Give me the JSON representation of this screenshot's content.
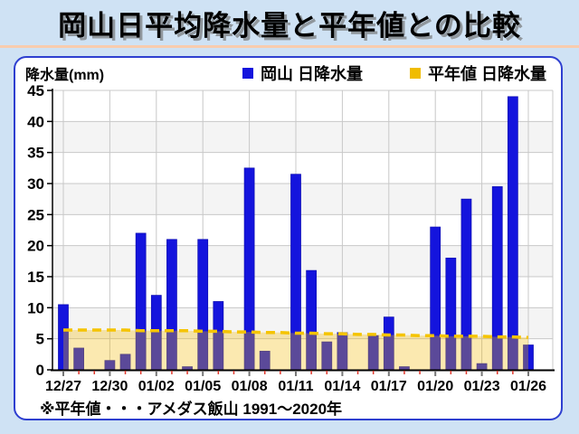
{
  "page": {
    "title": "岡山日平均降水量と平年値との比較",
    "footnote": "※平年値・・・アメダス飯山 1991～2020年"
  },
  "header": {
    "unit_label": "降水量(mm)",
    "legend": [
      {
        "label": "岡山 日降水量",
        "color": "#1414dd"
      },
      {
        "label": "平年値 日降水量",
        "color": "#f0bc00"
      }
    ]
  },
  "colors": {
    "page_background": "#cfe2f4",
    "title_divider": "#f8ccae",
    "panel_border": "#2e3fd0",
    "bar_blue": "#1414dd",
    "bar_blue_stroke": "#0f0fb4",
    "normal_area_fill": "rgba(243,187,9,0.32)",
    "normal_dash_line": "#f5c402",
    "gridline": "#c8c8c8",
    "band_gray": "#f4f4f4",
    "minor_tick_red": "#e03a2f",
    "major_tick_gray": "#777777"
  },
  "chart_data": {
    "type": "bar",
    "title": "岡山日平均降水量と平年値との比較",
    "xlabel": "",
    "ylabel": "降水量(mm)",
    "ylim": [
      0,
      45
    ],
    "yticks": [
      0,
      5,
      10,
      15,
      20,
      25,
      30,
      35,
      40,
      45
    ],
    "grid": true,
    "legend_position": "top",
    "x_label_interval": 3,
    "x_tick_labels_shown": [
      "12/27",
      "12/30",
      "01/02",
      "01/05",
      "01/08",
      "01/11",
      "01/14",
      "01/17",
      "01/20",
      "01/23",
      "01/26"
    ],
    "categories": [
      "12/27",
      "12/28",
      "12/29",
      "12/30",
      "12/31",
      "01/01",
      "01/02",
      "01/03",
      "01/04",
      "01/05",
      "01/06",
      "01/07",
      "01/08",
      "01/09",
      "01/10",
      "01/11",
      "01/12",
      "01/13",
      "01/14",
      "01/15",
      "01/16",
      "01/17",
      "01/18",
      "01/19",
      "01/20",
      "01/21",
      "01/22",
      "01/23",
      "01/24",
      "01/25",
      "01/26"
    ],
    "series": [
      {
        "name": "岡山 日降水量",
        "render": "bar",
        "color": "#1414dd",
        "values": [
          10.5,
          3.5,
          0,
          1.5,
          2.5,
          22,
          12,
          21,
          0.5,
          21,
          11,
          0,
          32.5,
          3,
          0,
          31.5,
          16,
          4.5,
          6,
          0,
          5.5,
          8.5,
          0.5,
          0,
          23,
          18,
          27.5,
          1,
          29.5,
          44,
          4
        ]
      },
      {
        "name": "平年値 日降水量",
        "render": "dashed-line-with-area",
        "color": "#f5c402",
        "values": [
          6.4,
          6.4,
          6.4,
          6.4,
          6.4,
          6.3,
          6.3,
          6.3,
          6.3,
          6.2,
          6.2,
          6.1,
          6.1,
          6.0,
          6.0,
          5.9,
          5.9,
          5.8,
          5.8,
          5.7,
          5.7,
          5.6,
          5.6,
          5.5,
          5.5,
          5.4,
          5.4,
          5.4,
          5.3,
          5.3,
          5.2
        ]
      }
    ]
  }
}
